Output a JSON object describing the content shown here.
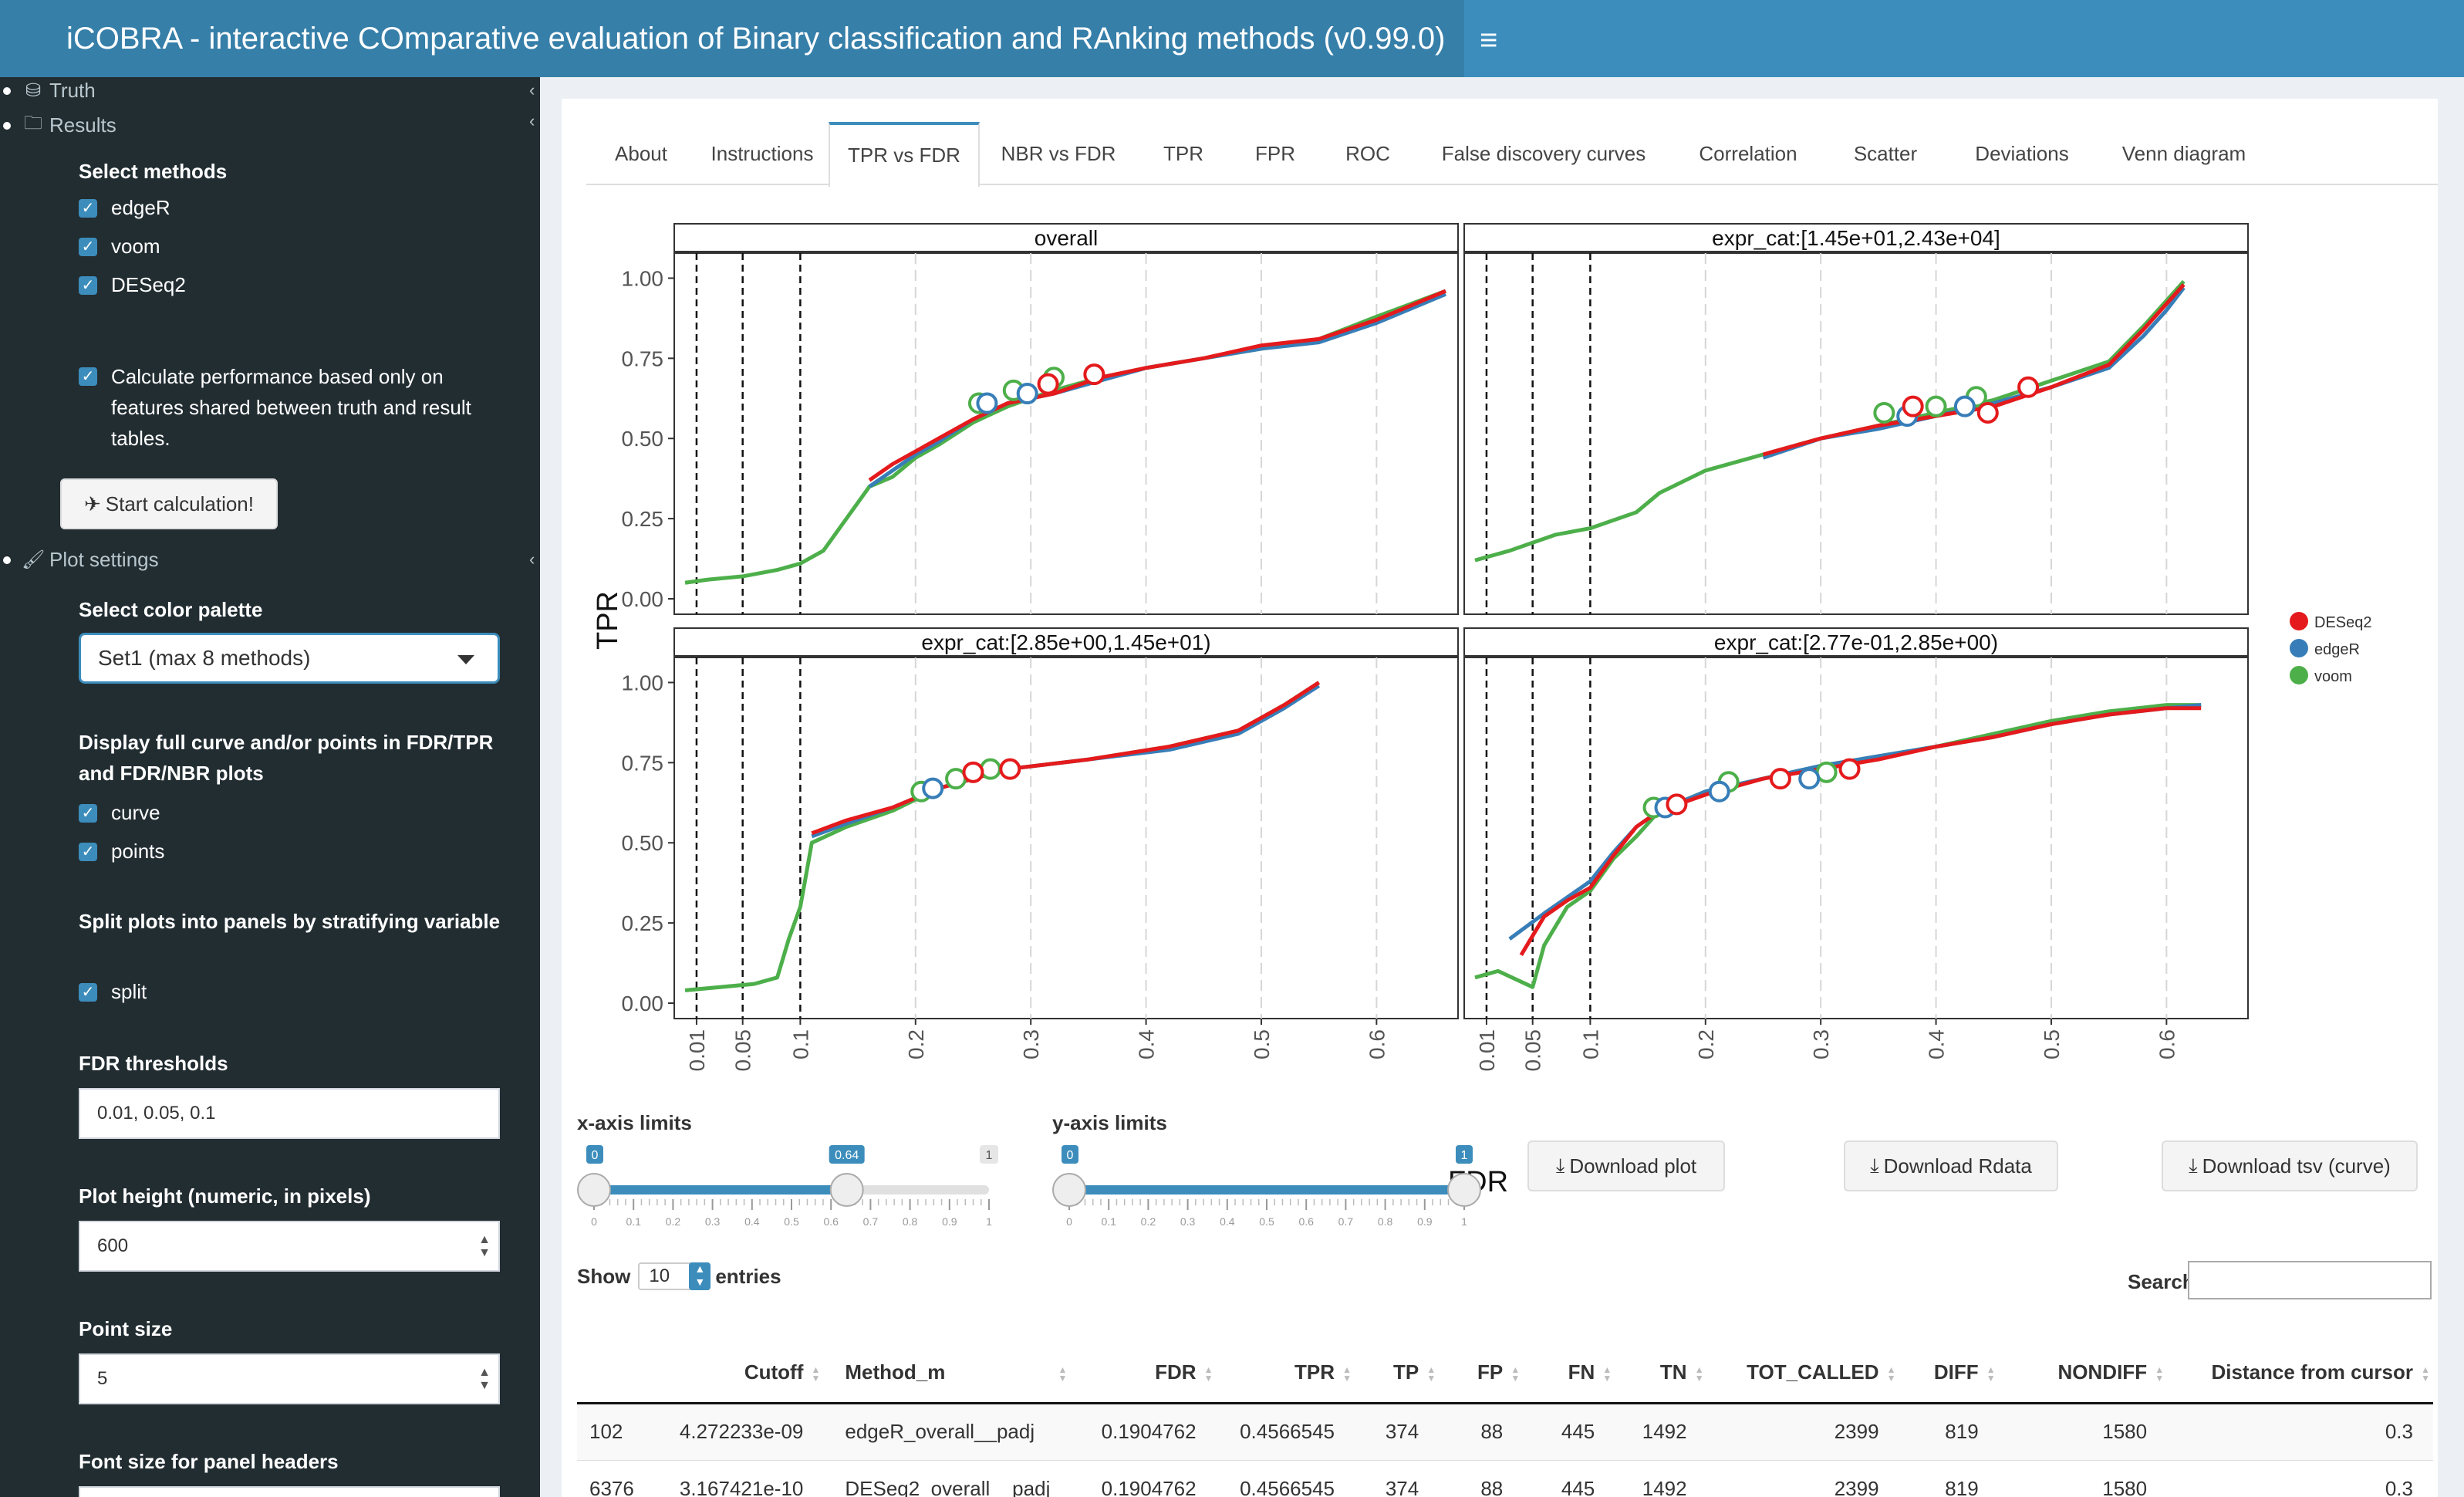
{
  "header": {
    "title": "iCOBRA - interactive COmparative evaluation of Binary classification and RAnking methods (v0.99.0)"
  },
  "sidebar": {
    "truth_label": "Truth",
    "results_label": "Results",
    "select_methods_label": "Select methods",
    "methods": [
      "edgeR",
      "voom",
      "DESeq2"
    ],
    "shared_features_label": "Calculate performance based only on features shared between truth and result tables.",
    "start_button": "Start calculation!",
    "plot_settings_label": "Plot settings",
    "color_palette_label": "Select color palette",
    "color_palette_value": "Set1 (max 8 methods)",
    "display_label": "Display full curve and/or points in FDR/TPR and FDR/NBR plots",
    "display_options": [
      "curve",
      "points"
    ],
    "split_label": "Split plots into panels by stratifying variable",
    "split_option": "split",
    "fdr_thresholds_label": "FDR thresholds",
    "fdr_thresholds_value": "0.01, 0.05, 0.1",
    "plot_height_label": "Plot height (numeric, in pixels)",
    "plot_height_value": "600",
    "point_size_label": "Point size",
    "point_size_value": "5",
    "font_size_label": "Font size for panel headers"
  },
  "tabs": [
    "About",
    "Instructions",
    "TPR vs FDR",
    "NBR vs FDR",
    "TPR",
    "FPR",
    "ROC",
    "False discovery curves",
    "Correlation",
    "Scatter",
    "Deviations",
    "Venn diagram"
  ],
  "active_tab": "TPR vs FDR",
  "colors": {
    "DESeq2": "#e41a1c",
    "edgeR": "#377eb8",
    "voom": "#4daf4a",
    "accent": "#3c8dbc"
  },
  "chart_data": {
    "type": "line",
    "xlabel": "FDR",
    "ylabel": "TPR",
    "legend": [
      "DESeq2",
      "edgeR",
      "voom"
    ],
    "legend_position": "right",
    "fdr_thresholds": [
      0.01,
      0.05,
      0.1
    ],
    "x_ticks": [
      "0.01",
      "0.05",
      "0.1",
      "0.2",
      "0.3",
      "0.4",
      "0.5",
      "0.6"
    ],
    "y_ticks": [
      "0.00",
      "0.25",
      "0.50",
      "0.75",
      "1.00"
    ],
    "xlim": [
      0,
      0.66
    ],
    "ylim": [
      0,
      1.03
    ],
    "panels": [
      {
        "title": "overall",
        "voom": [
          [
            0.0,
            0.05
          ],
          [
            0.02,
            0.06
          ],
          [
            0.05,
            0.07
          ],
          [
            0.08,
            0.09
          ],
          [
            0.1,
            0.11
          ],
          [
            0.12,
            0.15
          ],
          [
            0.13,
            0.2
          ],
          [
            0.14,
            0.25
          ],
          [
            0.15,
            0.3
          ],
          [
            0.16,
            0.35
          ],
          [
            0.18,
            0.38
          ],
          [
            0.2,
            0.44
          ],
          [
            0.22,
            0.48
          ],
          [
            0.25,
            0.55
          ],
          [
            0.28,
            0.6
          ],
          [
            0.32,
            0.65
          ],
          [
            0.36,
            0.69
          ],
          [
            0.4,
            0.72
          ],
          [
            0.45,
            0.75
          ],
          [
            0.5,
            0.78
          ],
          [
            0.55,
            0.81
          ],
          [
            0.6,
            0.88
          ],
          [
            0.63,
            0.92
          ],
          [
            0.66,
            0.96
          ]
        ],
        "edgeR": [
          [
            0.16,
            0.35
          ],
          [
            0.18,
            0.4
          ],
          [
            0.2,
            0.45
          ],
          [
            0.22,
            0.49
          ],
          [
            0.25,
            0.56
          ],
          [
            0.28,
            0.61
          ],
          [
            0.32,
            0.64
          ],
          [
            0.36,
            0.68
          ],
          [
            0.4,
            0.72
          ],
          [
            0.45,
            0.75
          ],
          [
            0.5,
            0.78
          ],
          [
            0.55,
            0.8
          ],
          [
            0.6,
            0.86
          ],
          [
            0.66,
            0.95
          ]
        ],
        "DESeq2": [
          [
            0.16,
            0.37
          ],
          [
            0.18,
            0.42
          ],
          [
            0.2,
            0.46
          ],
          [
            0.22,
            0.5
          ],
          [
            0.25,
            0.56
          ],
          [
            0.28,
            0.61
          ],
          [
            0.32,
            0.64
          ],
          [
            0.36,
            0.69
          ],
          [
            0.4,
            0.72
          ],
          [
            0.45,
            0.75
          ],
          [
            0.5,
            0.79
          ],
          [
            0.55,
            0.81
          ],
          [
            0.6,
            0.87
          ],
          [
            0.66,
            0.96
          ]
        ],
        "points": [
          {
            "m": "voom",
            "x": 0.255,
            "y": 0.61
          },
          {
            "m": "voom",
            "x": 0.285,
            "y": 0.65
          },
          {
            "m": "voom",
            "x": 0.32,
            "y": 0.69
          },
          {
            "m": "edgeR",
            "x": 0.262,
            "y": 0.61
          },
          {
            "m": "edgeR",
            "x": 0.297,
            "y": 0.64
          },
          {
            "m": "DESeq2",
            "x": 0.315,
            "y": 0.67
          },
          {
            "m": "DESeq2",
            "x": 0.355,
            "y": 0.7
          }
        ]
      },
      {
        "title": "expr_cat:[1.45e+01,2.43e+04]",
        "voom": [
          [
            0.0,
            0.12
          ],
          [
            0.03,
            0.15
          ],
          [
            0.07,
            0.2
          ],
          [
            0.1,
            0.22
          ],
          [
            0.14,
            0.27
          ],
          [
            0.16,
            0.33
          ],
          [
            0.2,
            0.4
          ],
          [
            0.25,
            0.45
          ],
          [
            0.3,
            0.5
          ],
          [
            0.35,
            0.54
          ],
          [
            0.4,
            0.58
          ],
          [
            0.45,
            0.62
          ],
          [
            0.5,
            0.68
          ],
          [
            0.55,
            0.74
          ],
          [
            0.58,
            0.85
          ],
          [
            0.6,
            0.93
          ],
          [
            0.615,
            0.99
          ]
        ],
        "edgeR": [
          [
            0.25,
            0.44
          ],
          [
            0.3,
            0.5
          ],
          [
            0.35,
            0.53
          ],
          [
            0.4,
            0.57
          ],
          [
            0.45,
            0.61
          ],
          [
            0.5,
            0.66
          ],
          [
            0.55,
            0.72
          ],
          [
            0.58,
            0.82
          ],
          [
            0.6,
            0.9
          ],
          [
            0.615,
            0.97
          ]
        ],
        "DESeq2": [
          [
            0.25,
            0.45
          ],
          [
            0.3,
            0.5
          ],
          [
            0.35,
            0.54
          ],
          [
            0.4,
            0.57
          ],
          [
            0.45,
            0.6
          ],
          [
            0.5,
            0.66
          ],
          [
            0.55,
            0.73
          ],
          [
            0.58,
            0.84
          ],
          [
            0.6,
            0.92
          ],
          [
            0.615,
            0.98
          ]
        ],
        "points": [
          {
            "m": "voom",
            "x": 0.355,
            "y": 0.58
          },
          {
            "m": "voom",
            "x": 0.4,
            "y": 0.6
          },
          {
            "m": "voom",
            "x": 0.435,
            "y": 0.63
          },
          {
            "m": "edgeR",
            "x": 0.375,
            "y": 0.57
          },
          {
            "m": "edgeR",
            "x": 0.425,
            "y": 0.6
          },
          {
            "m": "DESeq2",
            "x": 0.38,
            "y": 0.6
          },
          {
            "m": "DESeq2",
            "x": 0.445,
            "y": 0.58
          },
          {
            "m": "DESeq2",
            "x": 0.48,
            "y": 0.66
          }
        ]
      },
      {
        "title": "expr_cat:[2.85e+00,1.45e+01)",
        "voom": [
          [
            0.0,
            0.04
          ],
          [
            0.06,
            0.06
          ],
          [
            0.08,
            0.08
          ],
          [
            0.09,
            0.2
          ],
          [
            0.1,
            0.3
          ],
          [
            0.105,
            0.4
          ],
          [
            0.11,
            0.5
          ],
          [
            0.14,
            0.55
          ],
          [
            0.18,
            0.6
          ],
          [
            0.22,
            0.67
          ],
          [
            0.28,
            0.73
          ],
          [
            0.35,
            0.76
          ],
          [
            0.42,
            0.8
          ],
          [
            0.48,
            0.85
          ],
          [
            0.52,
            0.93
          ],
          [
            0.55,
            1.0
          ]
        ],
        "edgeR": [
          [
            0.11,
            0.52
          ],
          [
            0.14,
            0.56
          ],
          [
            0.18,
            0.61
          ],
          [
            0.22,
            0.67
          ],
          [
            0.28,
            0.73
          ],
          [
            0.35,
            0.76
          ],
          [
            0.42,
            0.79
          ],
          [
            0.48,
            0.84
          ],
          [
            0.52,
            0.92
          ],
          [
            0.55,
            0.99
          ]
        ],
        "DESeq2": [
          [
            0.11,
            0.53
          ],
          [
            0.14,
            0.57
          ],
          [
            0.18,
            0.61
          ],
          [
            0.22,
            0.67
          ],
          [
            0.28,
            0.73
          ],
          [
            0.35,
            0.76
          ],
          [
            0.42,
            0.8
          ],
          [
            0.48,
            0.85
          ],
          [
            0.52,
            0.93
          ],
          [
            0.55,
            1.0
          ]
        ],
        "points": [
          {
            "m": "voom",
            "x": 0.205,
            "y": 0.66
          },
          {
            "m": "voom",
            "x": 0.235,
            "y": 0.7
          },
          {
            "m": "voom",
            "x": 0.265,
            "y": 0.73
          },
          {
            "m": "edgeR",
            "x": 0.215,
            "y": 0.67
          },
          {
            "m": "DESeq2",
            "x": 0.25,
            "y": 0.72
          },
          {
            "m": "DESeq2",
            "x": 0.282,
            "y": 0.73
          }
        ]
      },
      {
        "title": "expr_cat:[2.77e-01,2.85e+00)",
        "voom": [
          [
            0.0,
            0.08
          ],
          [
            0.02,
            0.1
          ],
          [
            0.05,
            0.05
          ],
          [
            0.06,
            0.18
          ],
          [
            0.08,
            0.3
          ],
          [
            0.1,
            0.35
          ],
          [
            0.12,
            0.45
          ],
          [
            0.14,
            0.52
          ],
          [
            0.16,
            0.6
          ],
          [
            0.2,
            0.66
          ],
          [
            0.25,
            0.7
          ],
          [
            0.3,
            0.74
          ],
          [
            0.35,
            0.77
          ],
          [
            0.4,
            0.8
          ],
          [
            0.45,
            0.84
          ],
          [
            0.5,
            0.88
          ],
          [
            0.55,
            0.91
          ],
          [
            0.6,
            0.93
          ],
          [
            0.63,
            0.93
          ]
        ],
        "edgeR": [
          [
            0.03,
            0.2
          ],
          [
            0.06,
            0.28
          ],
          [
            0.08,
            0.33
          ],
          [
            0.1,
            0.38
          ],
          [
            0.12,
            0.47
          ],
          [
            0.14,
            0.55
          ],
          [
            0.16,
            0.6
          ],
          [
            0.2,
            0.66
          ],
          [
            0.25,
            0.7
          ],
          [
            0.3,
            0.74
          ],
          [
            0.35,
            0.77
          ],
          [
            0.4,
            0.8
          ],
          [
            0.45,
            0.83
          ],
          [
            0.5,
            0.87
          ],
          [
            0.55,
            0.9
          ],
          [
            0.6,
            0.92
          ],
          [
            0.63,
            0.93
          ]
        ],
        "DESeq2": [
          [
            0.04,
            0.15
          ],
          [
            0.06,
            0.27
          ],
          [
            0.08,
            0.32
          ],
          [
            0.1,
            0.36
          ],
          [
            0.12,
            0.46
          ],
          [
            0.14,
            0.55
          ],
          [
            0.16,
            0.6
          ],
          [
            0.2,
            0.65
          ],
          [
            0.25,
            0.7
          ],
          [
            0.3,
            0.73
          ],
          [
            0.35,
            0.76
          ],
          [
            0.4,
            0.8
          ],
          [
            0.45,
            0.83
          ],
          [
            0.5,
            0.87
          ],
          [
            0.55,
            0.9
          ],
          [
            0.6,
            0.92
          ],
          [
            0.63,
            0.92
          ]
        ],
        "points": [
          {
            "m": "voom",
            "x": 0.155,
            "y": 0.61
          },
          {
            "m": "voom",
            "x": 0.22,
            "y": 0.69
          },
          {
            "m": "voom",
            "x": 0.305,
            "y": 0.72
          },
          {
            "m": "edgeR",
            "x": 0.165,
            "y": 0.61
          },
          {
            "m": "edgeR",
            "x": 0.212,
            "y": 0.66
          },
          {
            "m": "edgeR",
            "x": 0.29,
            "y": 0.7
          },
          {
            "m": "DESeq2",
            "x": 0.175,
            "y": 0.62
          },
          {
            "m": "DESeq2",
            "x": 0.265,
            "y": 0.7
          },
          {
            "m": "DESeq2",
            "x": 0.325,
            "y": 0.73
          }
        ]
      }
    ]
  },
  "controls": {
    "x_limits_label": "x-axis limits",
    "y_limits_label": "y-axis limits",
    "x_slider": {
      "min": "0",
      "max": "1",
      "from": "0",
      "to": "0.64",
      "from_value": 0,
      "to_value": 0.64
    },
    "y_slider": {
      "min": "0",
      "max": "1",
      "from": "0",
      "to": "1",
      "from_value": 0,
      "to_value": 1
    },
    "slider_ticks": [
      "0",
      "0.1",
      "0.2",
      "0.3",
      "0.4",
      "0.5",
      "0.6",
      "0.7",
      "0.8",
      "0.9",
      "1"
    ],
    "download_plot": "Download plot",
    "download_rdata": "Download Rdata",
    "download_tsv": "Download tsv (curve)"
  },
  "table": {
    "show_label": "Show",
    "entries_value": "10",
    "entries_label": "entries",
    "search_label": "Search:",
    "columns": [
      "",
      "Cutoff",
      "Method_m",
      "FDR",
      "TPR",
      "TP",
      "FP",
      "FN",
      "TN",
      "TOT_CALLED",
      "DIFF",
      "NONDIFF",
      "Distance from cursor"
    ],
    "rows": [
      [
        "102",
        "4.272233e-09",
        "edgeR_overall__padj",
        "0.1904762",
        "0.4566545",
        "374",
        "88",
        "445",
        "1492",
        "2399",
        "819",
        "1580",
        "0.3"
      ],
      [
        "6376",
        "3.167421e-10",
        "DESeq2_overall__padj",
        "0.1904762",
        "0.4566545",
        "374",
        "88",
        "445",
        "1492",
        "2399",
        "819",
        "1580",
        "0.3"
      ]
    ]
  }
}
